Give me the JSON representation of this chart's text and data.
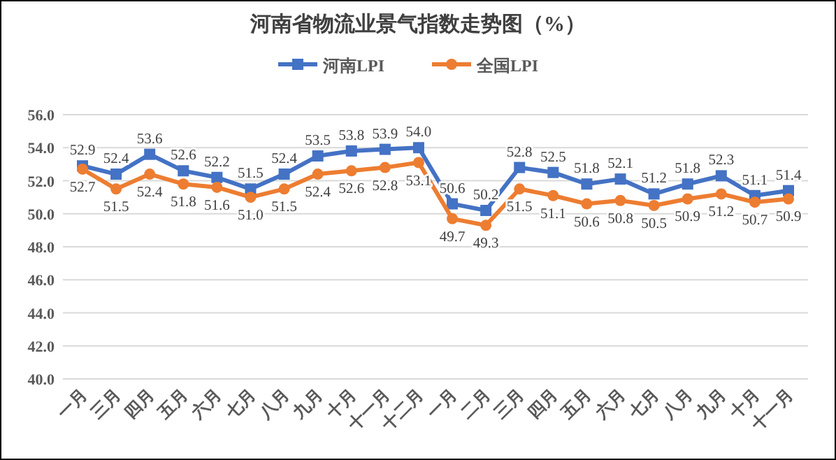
{
  "chart_data": {
    "type": "line",
    "title": "河南省物流业景气指数走势图（%）",
    "categories": [
      "一月",
      "三月",
      "四月",
      "五月",
      "六月",
      "七月",
      "八月",
      "九月",
      "十月",
      "十一月",
      "十二月",
      "一月",
      "二月",
      "三月",
      "四月",
      "五月",
      "六月",
      "七月",
      "八月",
      "九月",
      "十月",
      "十一月"
    ],
    "series": [
      {
        "name": "河南LPI",
        "color": "#4472c4",
        "marker": "square",
        "values": [
          52.9,
          52.4,
          53.6,
          52.6,
          52.2,
          51.5,
          52.4,
          53.5,
          53.8,
          53.9,
          54.0,
          50.6,
          50.2,
          52.8,
          52.5,
          51.8,
          52.1,
          51.2,
          51.8,
          52.3,
          51.1,
          51.4
        ],
        "value_labels": [
          "52.9",
          "52.4",
          "53.6",
          "52.6",
          "52.2",
          "51.5",
          "52.4",
          "53.5",
          "53.8",
          "53.9",
          "54.0",
          "50.6",
          "50.2",
          "52.8",
          "52.5",
          "51.8",
          "52.1",
          "51.2",
          "51.8",
          "52.3",
          "51.1",
          "51.4"
        ]
      },
      {
        "name": "全国LPI",
        "color": "#ed7d31",
        "marker": "circle",
        "values": [
          52.7,
          51.5,
          52.4,
          51.8,
          51.6,
          51.0,
          51.5,
          52.4,
          52.6,
          52.8,
          53.1,
          49.7,
          49.3,
          51.5,
          51.1,
          50.6,
          50.8,
          50.5,
          50.9,
          51.2,
          50.7,
          50.9
        ],
        "value_labels": [
          "52.7",
          "51.5",
          "52.4",
          "51.8",
          "51.6",
          "51.0",
          "51.5",
          "52.4",
          "52.6",
          "52.8",
          "53.1",
          "49.7",
          "49.3",
          "51.5",
          "51.1",
          "50.6",
          "50.8",
          "50.5",
          "50.9",
          "51.2",
          "50.7",
          "50.9"
        ]
      }
    ],
    "ylim": [
      40,
      56
    ],
    "yticks": [
      {
        "value": 40,
        "label": "40.0"
      },
      {
        "value": 42,
        "label": "42.0"
      },
      {
        "value": 44,
        "label": "44.0"
      },
      {
        "value": 46,
        "label": "46.0"
      },
      {
        "value": 48,
        "label": "48.0"
      },
      {
        "value": 50,
        "label": "50.0"
      },
      {
        "value": 52,
        "label": "52.0"
      },
      {
        "value": 54,
        "label": "54.0"
      },
      {
        "value": 56,
        "label": "56.0"
      }
    ],
    "grid": "y",
    "legend": "top",
    "line_style": "solid"
  }
}
